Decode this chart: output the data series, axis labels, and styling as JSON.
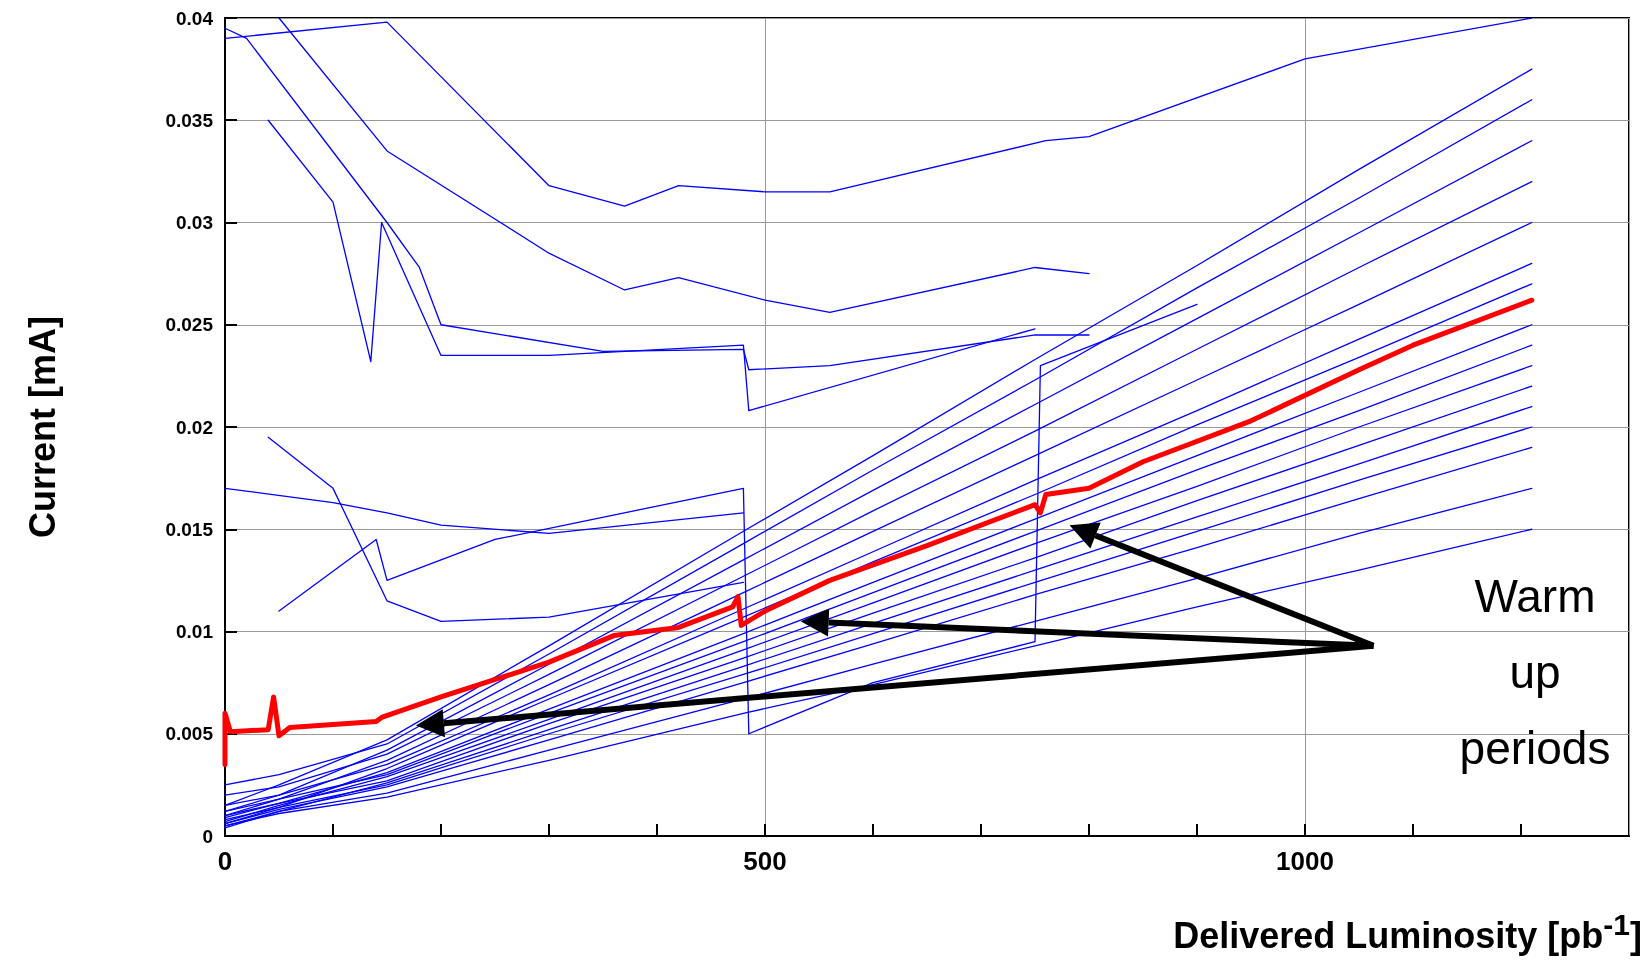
{
  "chart_data": {
    "type": "line",
    "xlabel": "Delivered Luminosity [pb$^{-1}$]",
    "ylabel": "Current [mA]",
    "annotations": [
      "Warm up periods"
    ],
    "xlim": [
      0,
      1300
    ],
    "ylim": [
      0,
      0.04
    ],
    "xticks": [
      0,
      {
        "value": 100,
        "label": null
      },
      {
        "value": 200,
        "label": null
      },
      {
        "value": 300,
        "label": null
      },
      {
        "value": 400,
        "label": null
      },
      500,
      {
        "value": 600,
        "label": null
      },
      {
        "value": 700,
        "label": null
      },
      {
        "value": 800,
        "label": null
      },
      {
        "value": 900,
        "label": null
      },
      1000,
      {
        "value": 1100,
        "label": null
      },
      {
        "value": 1200,
        "label": null
      }
    ],
    "yticks": [
      0,
      0.005,
      0.01,
      0.015,
      0.02,
      0.025,
      0.03,
      0.035,
      0.04
    ],
    "grid": true,
    "marker": "none",
    "line_style": "solid",
    "x": [
      0,
      50,
      150,
      300,
      480,
      600,
      750,
      900,
      1050,
      1210
    ],
    "series": [
      {
        "color": "#0000ff",
        "values": [
          0.0005,
          0.0011,
          0.0019,
          0.0037,
          0.006,
          0.0074,
          0.0093,
          0.0112,
          0.013,
          0.015
        ]
      },
      {
        "color": "#0000ff",
        "values": [
          0.0005,
          0.0012,
          0.0021,
          0.0042,
          0.0067,
          0.0084,
          0.0105,
          0.0126,
          0.0148,
          0.017
        ]
      },
      {
        "color": "#0000ff",
        "values": [
          0.0006,
          0.0013,
          0.0024,
          0.0047,
          0.0075,
          0.0094,
          0.0118,
          0.0141,
          0.0165,
          0.019
        ]
      },
      {
        "color": "#0000ff",
        "values": [
          0.0008,
          0.0014,
          0.0025,
          0.005,
          0.0079,
          0.0099,
          0.0124,
          0.0149,
          0.0174,
          0.02
        ]
      },
      {
        "color": "#0000ff",
        "values": [
          0.0004,
          0.0012,
          0.0026,
          0.0052,
          0.0083,
          0.0104,
          0.013,
          0.0156,
          0.0182,
          0.021
        ]
      },
      {
        "color": "#0000ff",
        "values": [
          0.001,
          0.0016,
          0.0027,
          0.0055,
          0.0087,
          0.0109,
          0.0136,
          0.0164,
          0.0191,
          0.022
        ]
      },
      {
        "color": "#0000ff",
        "values": [
          0.0007,
          0.0015,
          0.0029,
          0.0057,
          0.0091,
          0.0114,
          0.0143,
          0.0171,
          0.02,
          0.023
        ]
      },
      {
        "color": "#0000ff",
        "values": [
          0.0012,
          0.0018,
          0.003,
          0.006,
          0.0095,
          0.0119,
          0.0149,
          0.0179,
          0.0208,
          0.024
        ]
      },
      {
        "color": "#0000ff",
        "values": [
          0.0009,
          0.0016,
          0.0031,
          0.0062,
          0.0099,
          0.0124,
          0.0155,
          0.0186,
          0.0217,
          0.025
        ]
      },
      {
        "color": "#0000ff",
        "values": [
          0.0006,
          0.0014,
          0.0033,
          0.0067,
          0.0107,
          0.0134,
          0.0167,
          0.0201,
          0.0234,
          0.027
        ]
      },
      {
        "color": "#0000ff",
        "values": [
          0.0015,
          0.002,
          0.0035,
          0.0069,
          0.0111,
          0.0139,
          0.0174,
          0.0208,
          0.0243,
          0.028
        ]
      },
      {
        "color": "#0000ff",
        "values": [
          0.001,
          0.0018,
          0.0037,
          0.0074,
          0.0119,
          0.0149,
          0.0186,
          0.0223,
          0.026,
          0.03
        ]
      },
      {
        "color": "#0000ff",
        "values": [
          0.002,
          0.0024,
          0.004,
          0.0079,
          0.0127,
          0.0159,
          0.0198,
          0.0238,
          0.0278,
          0.032
        ]
      },
      {
        "color": "#0000ff",
        "values": [
          0.0012,
          0.002,
          0.0042,
          0.0084,
          0.0135,
          0.0169,
          0.0211,
          0.0253,
          0.0295,
          0.034
        ]
      },
      {
        "color": "#0000ff",
        "values": [
          0.0025,
          0.003,
          0.0045,
          0.0089,
          0.0143,
          0.0179,
          0.0223,
          0.0268,
          0.0312,
          0.036
        ]
      },
      {
        "color": "#0000ff",
        "values": [
          0.0015,
          0.0025,
          0.0047,
          0.0093,
          0.0149,
          0.0186,
          0.0233,
          0.0279,
          0.0326,
          0.0375
        ]
      },
      {
        "color": "#0000ff",
        "x": [
          0,
          150,
          300,
          370,
          420,
          500,
          560,
          760,
          800,
          1000,
          1210
        ],
        "values": [
          0.039,
          0.0398,
          0.0318,
          0.0308,
          0.0318,
          0.0315,
          0.0315,
          0.034,
          0.0342,
          0.038,
          0.04
        ]
      },
      {
        "color": "#0000ff",
        "x": [
          50,
          150,
          300,
          370,
          420,
          500,
          560,
          750,
          800
        ],
        "values": [
          0.04,
          0.0335,
          0.0285,
          0.0267,
          0.0273,
          0.0262,
          0.0256,
          0.0278,
          0.0275
        ]
      },
      {
        "color": "#0000ff",
        "x": [
          0,
          20,
          150,
          180,
          200,
          350,
          480,
          485,
          560,
          750,
          800
        ],
        "values": [
          0.0395,
          0.039,
          0.03,
          0.0278,
          0.025,
          0.0237,
          0.0238,
          0.0228,
          0.023,
          0.0245,
          0.0245
        ]
      },
      {
        "color": "#0000ff",
        "x": [
          40,
          100,
          135,
          145,
          200,
          300,
          480,
          485,
          750
        ],
        "values": [
          0.035,
          0.031,
          0.0232,
          0.03,
          0.0235,
          0.0235,
          0.024,
          0.0208,
          0.0248
        ]
      },
      {
        "color": "#0000ff",
        "x": [
          0,
          100,
          150,
          200,
          300,
          480
        ],
        "values": [
          0.017,
          0.0163,
          0.0158,
          0.0152,
          0.0148,
          0.0158
        ]
      },
      {
        "color": "#0000ff",
        "x": [
          40,
          100,
          150,
          200,
          300,
          480
        ],
        "values": [
          0.0195,
          0.017,
          0.0115,
          0.0105,
          0.0107,
          0.0124
        ]
      },
      {
        "color": "#0000ff",
        "x": [
          50,
          140,
          150,
          250,
          480,
          485,
          600,
          750,
          755,
          900
        ],
        "values": [
          0.011,
          0.0145,
          0.0125,
          0.0145,
          0.017,
          0.005,
          0.0075,
          0.0095,
          0.023,
          0.026
        ]
      },
      {
        "color": "#ff0000",
        "x": [
          0,
          0,
          5,
          40,
          45,
          50,
          60,
          140,
          145,
          200,
          300,
          360,
          420,
          470,
          475,
          478,
          500,
          560,
          650,
          750,
          755,
          760,
          800,
          850,
          950,
          1050,
          1100,
          1210
        ],
        "values": [
          0.0035,
          0.006,
          0.0051,
          0.0052,
          0.0068,
          0.0049,
          0.0053,
          0.0056,
          0.0058,
          0.0068,
          0.0085,
          0.0098,
          0.0102,
          0.0112,
          0.0117,
          0.0103,
          0.011,
          0.0125,
          0.0142,
          0.0162,
          0.0158,
          0.0167,
          0.017,
          0.0183,
          0.0203,
          0.0228,
          0.024,
          0.0262
        ]
      }
    ]
  }
}
